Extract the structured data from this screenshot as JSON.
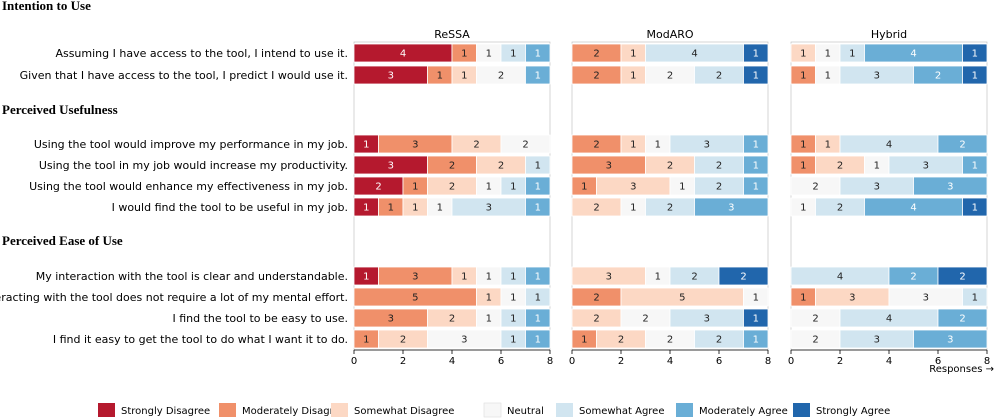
{
  "chart_data": {
    "type": "stacked-bar",
    "categories": [
      "Strongly Disagree",
      "Moderately Disagree",
      "Somewhat Disagree",
      "Neutral",
      "Somewhat Agree",
      "Moderately Agree",
      "Strongly Agree"
    ],
    "colors": [
      "#b5192e",
      "#f0906a",
      "#fcd8c4",
      "#f7f7f7",
      "#d1e5f0",
      "#6aaed6",
      "#2166ac"
    ],
    "panels": [
      "ReSSA",
      "ModARO",
      "Hybrid"
    ],
    "xlim": [
      0,
      8
    ],
    "xticks": [
      0,
      2,
      4,
      6,
      8
    ],
    "xlabel": "Responses →",
    "sections": [
      {
        "title": "Intention to Use",
        "questions": [
          {
            "label": "Assuming I have access to the tool, I intend to use it.",
            "values": [
              [
                4,
                1,
                0,
                1,
                1,
                1,
                0
              ],
              [
                0,
                2,
                1,
                0,
                4,
                0,
                1
              ],
              [
                0,
                0,
                1,
                1,
                1,
                4,
                1
              ]
            ]
          },
          {
            "label": "Given that I have access to the tool, I predict I would use it.",
            "values": [
              [
                3,
                1,
                1,
                2,
                0,
                1,
                0
              ],
              [
                0,
                2,
                1,
                2,
                2,
                0,
                1
              ],
              [
                0,
                1,
                0,
                1,
                3,
                2,
                1
              ]
            ]
          }
        ]
      },
      {
        "title": "Perceived Usefulness",
        "questions": [
          {
            "label": "Using the tool would improve my performance in my job.",
            "values": [
              [
                1,
                3,
                2,
                2,
                0,
                0,
                0
              ],
              [
                0,
                2,
                1,
                1,
                3,
                1,
                0
              ],
              [
                0,
                1,
                1,
                0,
                4,
                2,
                0
              ]
            ]
          },
          {
            "label": "Using the tool in my job would increase my productivity.",
            "values": [
              [
                3,
                2,
                2,
                0,
                1,
                0,
                0
              ],
              [
                0,
                3,
                2,
                0,
                2,
                1,
                0
              ],
              [
                0,
                1,
                2,
                1,
                3,
                1,
                0
              ]
            ]
          },
          {
            "label": "Using the tool would enhance my effectiveness in my job.",
            "values": [
              [
                2,
                1,
                2,
                1,
                1,
                1,
                0
              ],
              [
                0,
                1,
                3,
                1,
                2,
                1,
                0
              ],
              [
                0,
                0,
                0,
                2,
                3,
                3,
                0
              ]
            ]
          },
          {
            "label": "I would find the tool to be useful in my job.",
            "values": [
              [
                1,
                1,
                1,
                1,
                3,
                1,
                0
              ],
              [
                0,
                0,
                2,
                1,
                2,
                3,
                0
              ],
              [
                0,
                0,
                0,
                1,
                2,
                4,
                1
              ]
            ]
          }
        ]
      },
      {
        "title": "Perceived Ease of Use",
        "questions": [
          {
            "label": "My interaction with the tool is clear and understandable.",
            "values": [
              [
                1,
                3,
                1,
                1,
                1,
                1,
                0
              ],
              [
                0,
                0,
                3,
                1,
                2,
                0,
                2
              ],
              [
                0,
                0,
                0,
                0,
                4,
                2,
                2
              ]
            ]
          },
          {
            "label": "Interacting with the tool does not require a lot of my mental effort.",
            "values": [
              [
                0,
                5,
                1,
                1,
                1,
                0,
                0
              ],
              [
                0,
                2,
                5,
                1,
                0,
                0,
                0
              ],
              [
                0,
                1,
                3,
                3,
                1,
                0,
                0
              ]
            ]
          },
          {
            "label": "I find the tool to be easy to use.",
            "values": [
              [
                0,
                3,
                2,
                1,
                1,
                1,
                0
              ],
              [
                0,
                0,
                2,
                2,
                3,
                0,
                1
              ],
              [
                0,
                0,
                0,
                2,
                4,
                2,
                0
              ]
            ]
          },
          {
            "label": "I find it easy to get the tool to do what I want it to do.",
            "values": [
              [
                0,
                1,
                2,
                3,
                1,
                1,
                0
              ],
              [
                0,
                1,
                2,
                2,
                2,
                1,
                0
              ],
              [
                0,
                0,
                0,
                2,
                3,
                3,
                0
              ]
            ]
          }
        ]
      }
    ]
  }
}
